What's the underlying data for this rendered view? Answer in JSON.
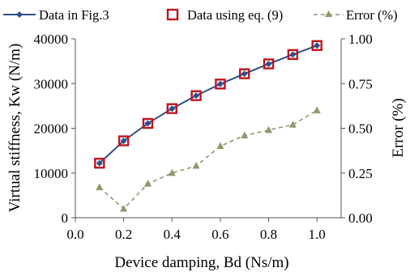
{
  "chart_data": {
    "type": "line",
    "title": "",
    "xlabel": "Device damping, Bd (Ns/m)",
    "ylabel": "Virtual stiffness, Kw (N/m)",
    "y2label": "Error (%)",
    "xlim": [
      0.0,
      1.1
    ],
    "ylim": [
      0,
      40000
    ],
    "y2lim": [
      0.0,
      1.0
    ],
    "grid": false,
    "legend_position": "top",
    "x_ticks": [
      "0.0",
      "0.2",
      "0.4",
      "0.6",
      "0.8",
      "1.0"
    ],
    "y_ticks": [
      "0",
      "10000",
      "20000",
      "30000",
      "40000"
    ],
    "y2_ticks": [
      "0.00",
      "0.25",
      "0.50",
      "0.75",
      "1.00"
    ],
    "x": [
      0.1,
      0.2,
      0.3,
      0.4,
      0.5,
      0.6,
      0.7,
      0.8,
      0.9,
      1.0
    ],
    "series": [
      {
        "name": "Data in Fig.3",
        "axis": "left",
        "color": "#2e4f88",
        "marker": "diamond",
        "values": [
          12200,
          17200,
          21100,
          24400,
          27300,
          29900,
          32200,
          34400,
          36500,
          38500
        ]
      },
      {
        "name": "Data using eq. (9)",
        "axis": "left",
        "color": "#c0141c",
        "marker": "open-square",
        "values": [
          12200,
          17200,
          21100,
          24400,
          27300,
          29900,
          32200,
          34400,
          36500,
          38500
        ]
      },
      {
        "name": "Error (%)",
        "axis": "right",
        "color": "#8a9a6a",
        "marker": "triangle",
        "line": "dashed",
        "values": [
          0.17,
          0.05,
          0.19,
          0.25,
          0.29,
          0.4,
          0.46,
          0.49,
          0.52,
          0.6
        ]
      }
    ]
  }
}
